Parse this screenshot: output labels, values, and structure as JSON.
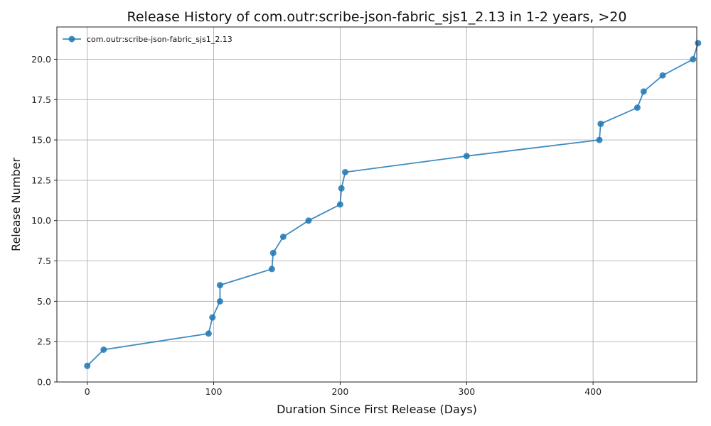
{
  "chart_data": {
    "type": "line",
    "title": "Release History of com.outr:scribe-json-fabric_sjs1_2.13 in 1-2 years, >20",
    "xlabel": "Duration Since First Release (Days)",
    "ylabel": "Release Number",
    "xlim": [
      -24,
      482
    ],
    "ylim": [
      0,
      22
    ],
    "x_ticks": [
      "0",
      "100",
      "200",
      "300",
      "400",
      "500"
    ],
    "y_ticks": [
      "0.0",
      "2.5",
      "5.0",
      "7.5",
      "10.0",
      "12.5",
      "15.0",
      "17.5",
      "20.0"
    ],
    "grid": true,
    "legend_position": "top-left",
    "series": [
      {
        "name": "com.outr:scribe-json-fabric_sjs1_2.13",
        "color": "#1f77b4",
        "marker": "circle",
        "x": [
          0,
          13,
          96,
          99,
          105,
          105,
          146,
          147,
          155,
          175,
          200,
          201,
          204,
          300,
          405,
          406,
          435,
          440,
          455,
          479,
          483
        ],
        "y": [
          1,
          2,
          3,
          4,
          5,
          6,
          7,
          8,
          9,
          10,
          11,
          12,
          13,
          14,
          15,
          16,
          17,
          18,
          19,
          20,
          21
        ]
      }
    ]
  }
}
